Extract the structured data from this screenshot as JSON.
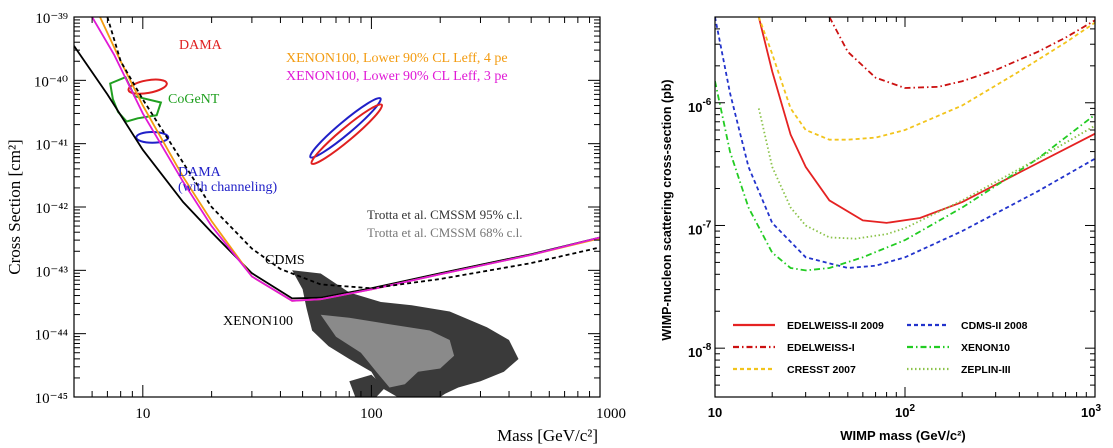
{
  "chart_data": [
    {
      "type": "line",
      "title": "",
      "xlabel": "Mass [GeV/c²]",
      "ylabel": "Cross Section [cm²]",
      "xscale": "log",
      "yscale": "log",
      "xlim": [
        5,
        1000
      ],
      "ylim": [
        1e-45,
        1e-39
      ],
      "x_ticks": [
        {
          "v": 10,
          "label": "10"
        },
        {
          "v": 100,
          "label": "100"
        },
        {
          "v": 1000,
          "label": "1000"
        }
      ],
      "y_ticks": [
        {
          "v": -39,
          "label": "10⁻³⁹"
        },
        {
          "v": -40,
          "label": "10⁻⁴⁰"
        },
        {
          "v": -41,
          "label": "10⁻⁴¹"
        },
        {
          "v": -42,
          "label": "10⁻⁴²"
        },
        {
          "v": -43,
          "label": "10⁻⁴³"
        },
        {
          "v": -44,
          "label": "10⁻⁴⁴"
        },
        {
          "v": -45,
          "label": "10⁻⁴⁵"
        }
      ],
      "series": [
        {
          "name": "XENON100",
          "color": "#000000",
          "style": "solid",
          "x": [
            5,
            7,
            10,
            15,
            20,
            30,
            45,
            60,
            100,
            200,
            500,
            1000
          ],
          "y": [
            3.5e-40,
            6e-41,
            8e-42,
            1.2e-42,
            4e-43,
            9e-44,
            3.6e-44,
            3.7e-44,
            5.2e-44,
            9e-44,
            1.8e-43,
            3.3e-43
          ]
        },
        {
          "name": "XENON100, Lower 90% CL Leff, 4 pe",
          "color": "#f39c12",
          "style": "solid",
          "x": [
            6.5,
            8,
            10,
            15,
            20,
            30,
            45,
            60,
            100,
            200,
            500,
            1000
          ],
          "y": [
            1e-39,
            2e-40,
            4e-41,
            3e-42,
            6e-43,
            8e-44,
            3.3e-44,
            3.5e-44,
            5e-44,
            8.7e-44,
            1.75e-43,
            3.2e-43
          ]
        },
        {
          "name": "XENON100, Lower 90% CL Leff, 3 pe",
          "color": "#e01ad6",
          "style": "solid",
          "x": [
            6,
            7.5,
            10,
            15,
            20,
            30,
            45,
            60,
            100,
            200,
            500,
            1000
          ],
          "y": [
            1e-39,
            2.5e-40,
            3e-41,
            2.5e-42,
            5e-43,
            8e-44,
            3.3e-44,
            3.5e-44,
            5e-44,
            8.7e-44,
            1.75e-43,
            3.3e-43
          ]
        },
        {
          "name": "CDMS",
          "color": "#000000",
          "style": "dashed",
          "x": [
            7,
            8,
            10,
            15,
            20,
            30,
            40,
            60,
            100,
            200,
            500,
            1000
          ],
          "y": [
            1e-39,
            2e-40,
            5e-41,
            5e-42,
            1e-42,
            2.2e-43,
            1.05e-43,
            6e-44,
            5.2e-44,
            7.3e-44,
            1.3e-43,
            2.3e-43
          ]
        }
      ],
      "regions": [
        {
          "name": "DAMA",
          "color": "#e02020",
          "cx": 10.5,
          "cy": -40.1,
          "rx": 0.085,
          "ry": 0.1,
          "angle": -10
        },
        {
          "name": "DAMA (with channeling)",
          "color": "#2020c8",
          "cx": 11,
          "cy": -40.9,
          "rx": 0.07,
          "ry": 0.085,
          "angle": 0
        },
        {
          "name": "DAMA (upper ellipse)",
          "color": "#2020c8",
          "cx": 77,
          "cy": -40.75,
          "rx": 0.2,
          "ry": 0.1,
          "angle": -40
        },
        {
          "name": "DAMA (lower ellipse)",
          "color": "#e02020",
          "cx": 78,
          "cy": -40.85,
          "rx": 0.2,
          "ry": 0.1,
          "angle": -40
        }
      ],
      "annotations": [
        {
          "text": "DAMA",
          "color": "#e02020"
        },
        {
          "text": "CoGeNT",
          "color": "#20a020"
        },
        {
          "text": "DAMA",
          "color": "#2020c8"
        },
        {
          "text": "(with channeling)",
          "color": "#2020c8"
        },
        {
          "text": "XENON100, Lower 90% CL Leff, 4 pe",
          "color": "#f39c12"
        },
        {
          "text": "XENON100, Lower 90% CL Leff, 3 pe",
          "color": "#e01ad6"
        },
        {
          "text": "Trotta et al. CMSSM 95% c.l.",
          "color": "#333333"
        },
        {
          "text": "Trotta et al. CMSSM 68% c.l.",
          "color": "#777777"
        },
        {
          "text": "CDMS",
          "color": "#000000"
        },
        {
          "text": "XENON100",
          "color": "#000000"
        }
      ],
      "cmssm": {
        "color95": "#3a3a3a",
        "color68": "#8a8a8a"
      }
    },
    {
      "type": "line",
      "title": "",
      "xlabel": "WIMP mass (GeV/c²)",
      "ylabel": "WIMP-nucleon scattering cross-section (pb)",
      "xscale": "log",
      "yscale": "log",
      "xlim": [
        10,
        1000
      ],
      "ylim": [
        4e-09,
        5e-06
      ],
      "x_ticks": [
        {
          "v": 10,
          "base": "10",
          "exp": ""
        },
        {
          "v": 100,
          "base": "10",
          "exp": "2"
        },
        {
          "v": 1000,
          "base": "10",
          "exp": "3"
        }
      ],
      "y_ticks": [
        {
          "v": 1e-06,
          "base": "10",
          "exp": "-6"
        },
        {
          "v": 1e-07,
          "base": "10",
          "exp": "-7"
        },
        {
          "v": 1e-08,
          "base": "10",
          "exp": "-8"
        }
      ],
      "series": [
        {
          "name": "EDELWEISS-II 2009",
          "color": "#e52222",
          "style": "solid",
          "x": [
            17,
            20,
            25,
            30,
            40,
            60,
            80,
            120,
            200,
            400,
            1000
          ],
          "y": [
            5e-06,
            1.8e-06,
            5.5e-07,
            3e-07,
            1.6e-07,
            1.1e-07,
            1.05e-07,
            1.15e-07,
            1.55e-07,
            2.7e-07,
            5.6e-07
          ]
        },
        {
          "name": "EDELWEISS-I",
          "color": "#cc1111",
          "style": "dashdot",
          "x": [
            40,
            50,
            70,
            100,
            150,
            200,
            300,
            500,
            700,
            1000
          ],
          "y": [
            5e-06,
            2.6e-06,
            1.6e-06,
            1.32e-06,
            1.35e-06,
            1.5e-06,
            1.85e-06,
            2.6e-06,
            3.4e-06,
            4.7e-06
          ]
        },
        {
          "name": "CRESST 2007",
          "color": "#f2c41c",
          "style": "dashed",
          "x": [
            17,
            20,
            25,
            30,
            40,
            50,
            70,
            100,
            200,
            400,
            700,
            1000
          ],
          "y": [
            5e-06,
            2.5e-06,
            9e-07,
            6e-07,
            5e-07,
            5e-07,
            5.2e-07,
            6e-07,
            9.5e-07,
            1.8e-06,
            3.1e-06,
            4.5e-06
          ]
        },
        {
          "name": "CDMS-II 2008",
          "color": "#2233cc",
          "style": "dashed",
          "x": [
            10,
            12,
            15,
            20,
            30,
            50,
            70,
            100,
            200,
            500,
            1000
          ],
          "y": [
            5e-06,
            1.2e-06,
            3e-07,
            1.05e-07,
            5.5e-08,
            4.5e-08,
            4.7e-08,
            5.5e-08,
            9e-08,
            1.9e-07,
            3.5e-07
          ]
        },
        {
          "name": "XENON10",
          "color": "#22cc22",
          "style": "dashdot",
          "x": [
            10,
            12,
            15,
            20,
            25,
            30,
            40,
            60,
            100,
            200,
            500,
            1000
          ],
          "y": [
            1.5e-06,
            4e-07,
            1.4e-07,
            6e-08,
            4.5e-08,
            4.3e-08,
            4.5e-08,
            5.5e-08,
            7.6e-08,
            1.4e-07,
            3.5e-07,
            8e-07
          ]
        },
        {
          "name": "ZEPLIN-III",
          "color": "#8bc34a",
          "style": "dotted",
          "x": [
            17,
            20,
            25,
            30,
            40,
            55,
            80,
            100,
            200,
            500,
            1000
          ],
          "y": [
            9e-07,
            3e-07,
            1.4e-07,
            1e-07,
            8e-08,
            7.8e-08,
            8.5e-08,
            9.5e-08,
            1.6e-07,
            3.5e-07,
            6.5e-07
          ]
        }
      ],
      "legend_position": "bottom"
    }
  ]
}
